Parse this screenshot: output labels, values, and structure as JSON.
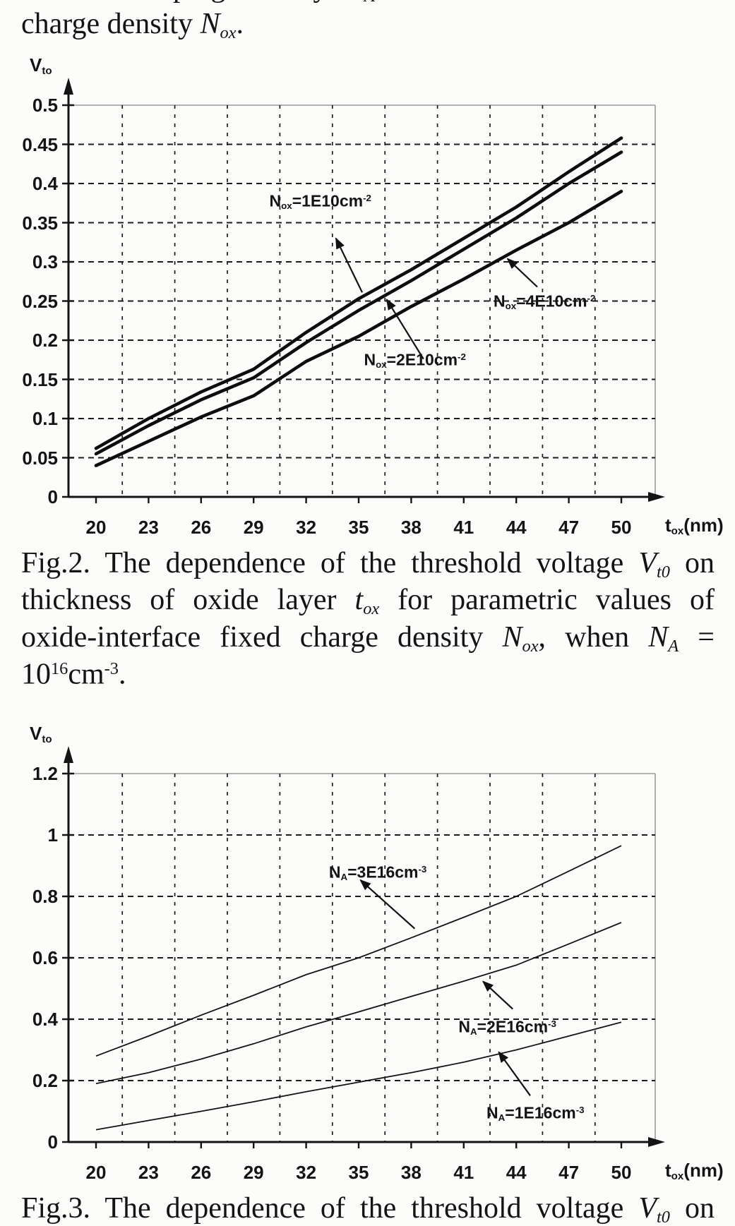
{
  "colors": {
    "ink": "#141414",
    "frame_gray": "#9a9a9a",
    "background": "#fcfcfb"
  },
  "top_text": {
    "line1_clipped": [
      {
        "t": "substrate doping density "
      },
      {
        "t": "N",
        "i": 1
      },
      {
        "t": "A",
        "sub": 1,
        "i": 1
      },
      {
        "t": " and oxide interface fixed"
      }
    ],
    "line2": [
      {
        "t": "charge density "
      },
      {
        "t": "N",
        "i": 1
      },
      {
        "t": "ox",
        "sub": 1,
        "i": 1
      },
      {
        "t": "."
      }
    ]
  },
  "fig2_caption": {
    "l1": [
      {
        "t": "Fig.2. The dependence of the threshold voltage "
      },
      {
        "t": "V",
        "i": 1
      },
      {
        "t": "t0",
        "sub": 1,
        "i": 1
      },
      {
        "t": " on"
      }
    ],
    "l2": [
      {
        "t": "thickness of oxide layer "
      },
      {
        "t": "t",
        "i": 1
      },
      {
        "t": "ox",
        "sub": 1,
        "i": 1
      },
      {
        "t": " for parametric values of"
      }
    ],
    "l3": [
      {
        "t": "oxide-interface fixed charge density "
      },
      {
        "t": "N",
        "i": 1
      },
      {
        "t": "ox",
        "sub": 1,
        "i": 1
      },
      {
        "t": ", when "
      },
      {
        "t": "N",
        "i": 1
      },
      {
        "t": "A",
        "sub": 1,
        "i": 1
      },
      {
        "t": " ="
      }
    ],
    "l4": [
      {
        "t": "10"
      },
      {
        "t": "16",
        "sup": 1
      },
      {
        "t": "cm"
      },
      {
        "t": "-3",
        "sup": 1
      },
      {
        "t": "."
      }
    ]
  },
  "fig3_caption": {
    "l1": [
      {
        "t": "Fig.3. The dependence of the threshold voltage "
      },
      {
        "t": "V",
        "i": 1
      },
      {
        "t": "t0",
        "sub": 1,
        "i": 1
      },
      {
        "t": " on"
      }
    ]
  },
  "chart_data": [
    {
      "id": "fig2-chart",
      "type": "line",
      "title": "",
      "grid": "dashed",
      "legend_position": "none",
      "ylabel": [
        {
          "t": "V"
        },
        {
          "t": "to",
          "sub": 1
        }
      ],
      "xlabel": [
        {
          "t": "t"
        },
        {
          "t": "ox",
          "sub": 1
        },
        {
          "t": "(nm)"
        }
      ],
      "xlim": [
        20,
        50
      ],
      "ylim": [
        0,
        0.5
      ],
      "x": [
        20,
        23,
        26,
        29,
        32,
        35,
        38,
        41,
        44,
        47,
        50
      ],
      "x_tick_labels": [
        "20",
        "23",
        "26",
        "29",
        "32",
        "35",
        "38",
        "41",
        "44",
        "47",
        "50"
      ],
      "y_ticks": [
        {
          "label": "0.5",
          "v": 0.5
        },
        {
          "label": "0.45",
          "v": 0.45
        },
        {
          "label": "0.4",
          "v": 0.4
        },
        {
          "label": "0.35",
          "v": 0.35
        },
        {
          "label": "0.3",
          "v": 0.3
        },
        {
          "label": "0.25",
          "v": 0.25
        },
        {
          "label": "0.2",
          "v": 0.2
        },
        {
          "label": "0.15",
          "v": 0.15
        },
        {
          "label": "0.1",
          "v": 0.1
        },
        {
          "label": "0.05",
          "v": 0.05
        },
        {
          "label": "0",
          "v": 0
        }
      ],
      "series": [
        {
          "name": "Nox=1E10cm-2",
          "values": [
            0.062,
            0.1,
            0.134,
            0.163,
            0.21,
            0.253,
            0.29,
            0.33,
            0.37,
            0.415,
            0.458
          ]
        },
        {
          "name": "Nox=2E10cm-2",
          "values": [
            0.055,
            0.091,
            0.124,
            0.152,
            0.197,
            0.238,
            0.276,
            0.316,
            0.356,
            0.4,
            0.44
          ]
        },
        {
          "name": "Nox=4E10cm-2",
          "values": [
            0.04,
            0.071,
            0.102,
            0.129,
            0.173,
            0.205,
            0.243,
            0.278,
            0.315,
            0.35,
            0.39
          ]
        }
      ],
      "annotations": [
        {
          "parts": [
            {
              "t": "N"
            },
            {
              "t": "ox",
              "sub": 1
            },
            {
              "t": "=1E10cm"
            },
            {
              "t": "-2",
              "sup": 1
            }
          ],
          "label_t": 29.9,
          "label_v": 0.394,
          "head_t": 33.7,
          "head_v": 0.33,
          "tail_t": 35.2,
          "tail_v": 0.261
        },
        {
          "parts": [
            {
              "t": "N"
            },
            {
              "t": "ox",
              "sub": 1
            },
            {
              "t": "=2E10cm"
            },
            {
              "t": "-2",
              "sup": 1
            }
          ],
          "label_t": 35.3,
          "label_v": 0.191,
          "head_t": 36.6,
          "head_v": 0.252,
          "tail_t": 38.7,
          "tail_v": 0.176
        },
        {
          "parts": [
            {
              "t": "N"
            },
            {
              "t": "ox",
              "sub": 1
            },
            {
              "t": "=4E10cm"
            },
            {
              "t": "-2",
              "sup": 1
            }
          ],
          "label_t": 42.7,
          "label_v": 0.266,
          "head_t": 43.5,
          "head_v": 0.304,
          "tail_t": 45.2,
          "tail_v": 0.268
        }
      ]
    },
    {
      "id": "fig3-chart",
      "type": "line",
      "title": "",
      "grid": "dashed",
      "legend_position": "none",
      "ylabel": [
        {
          "t": "V"
        },
        {
          "t": "to",
          "sub": 1
        }
      ],
      "xlabel": [
        {
          "t": "t"
        },
        {
          "t": "ox",
          "sub": 1
        },
        {
          "t": "(nm)"
        }
      ],
      "xlim": [
        20,
        50
      ],
      "ylim": [
        0,
        1.2
      ],
      "x": [
        20,
        23,
        26,
        29,
        32,
        35,
        38,
        41,
        44,
        47,
        50
      ],
      "x_tick_labels": [
        "20",
        "23",
        "26",
        "29",
        "32",
        "35",
        "38",
        "41",
        "44",
        "47",
        "50"
      ],
      "y_ticks": [
        {
          "label": "1.2",
          "v": 1.2
        },
        {
          "label": "1",
          "v": 1.0
        },
        {
          "label": "0.8",
          "v": 0.8
        },
        {
          "label": "0.6",
          "v": 0.6
        },
        {
          "label": "0.4",
          "v": 0.4
        },
        {
          "label": "0.2",
          "v": 0.2
        },
        {
          "label": "0",
          "v": 0
        }
      ],
      "series": [
        {
          "name": "NA=3E16cm-3",
          "values": [
            0.28,
            0.345,
            0.413,
            0.478,
            0.545,
            0.6,
            0.665,
            0.732,
            0.8,
            0.882,
            0.965
          ]
        },
        {
          "name": "NA=2E16cm-3",
          "values": [
            0.19,
            0.226,
            0.27,
            0.32,
            0.375,
            0.424,
            0.474,
            0.524,
            0.576,
            0.645,
            0.715
          ]
        },
        {
          "name": "NA=1E16cm-3",
          "values": [
            0.04,
            0.07,
            0.1,
            0.131,
            0.164,
            0.195,
            0.226,
            0.26,
            0.3,
            0.345,
            0.39
          ]
        }
      ],
      "annotations": [
        {
          "parts": [
            {
              "t": "N"
            },
            {
              "t": "A",
              "sub": 1
            },
            {
              "t": "=3E16cm"
            },
            {
              "t": "-3",
              "sup": 1
            }
          ],
          "label_t": 33.3,
          "label_v": 0.92,
          "head_t": 35.1,
          "head_v": 0.853,
          "tail_t": 38.2,
          "tail_v": 0.695
        },
        {
          "parts": [
            {
              "t": "N"
            },
            {
              "t": "A",
              "sub": 1
            },
            {
              "t": "=2E16cm"
            },
            {
              "t": "-3",
              "sup": 1
            }
          ],
          "label_t": 40.7,
          "label_v": 0.417,
          "head_t": 42.1,
          "head_v": 0.523,
          "tail_t": 43.8,
          "tail_v": 0.433
        },
        {
          "parts": [
            {
              "t": "N"
            },
            {
              "t": "A",
              "sub": 1
            },
            {
              "t": "=1E16cm"
            },
            {
              "t": "-3",
              "sup": 1
            }
          ],
          "label_t": 42.3,
          "label_v": 0.135,
          "head_t": 43.0,
          "head_v": 0.293,
          "tail_t": 44.8,
          "tail_v": 0.151
        }
      ]
    }
  ]
}
